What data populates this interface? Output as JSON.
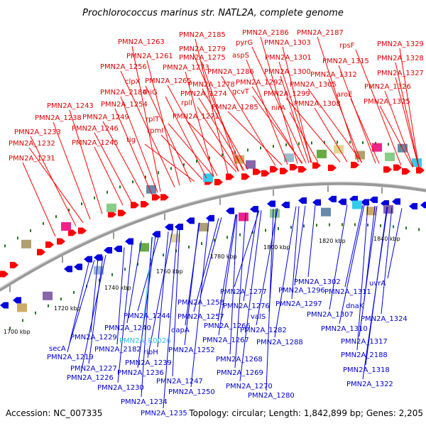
{
  "title": "Prochlorococcus marinus str. NATL2A, complete genome",
  "accession": "Accession: NC_007335",
  "topology": "Topology: circular; Length: 1,842,899 bp; Genes: 2,205",
  "colors": {
    "forward_gene": "#ff0000",
    "reverse_gene": "#0000dd",
    "rna_gene": "#33bbdd",
    "backbone": "#888888",
    "tick_marks": "#227722"
  },
  "scale_labels": [
    {
      "id": "1700",
      "text": "1700 kbp"
    },
    {
      "id": "1720",
      "text": "1720 kbp"
    },
    {
      "id": "1740",
      "text": "1740 kbp"
    },
    {
      "id": "1760",
      "text": "1760 kbp"
    },
    {
      "id": "1780",
      "text": "1780 kbp"
    },
    {
      "id": "1800",
      "text": "1800 kbp"
    },
    {
      "id": "1820",
      "text": "1820 kbp"
    },
    {
      "id": "1840",
      "text": "1840 kbp"
    }
  ],
  "top_genes": [
    "PMN2A_1263",
    "PMN2A_2185",
    "PMN2A_2186",
    "PMN2A_2187",
    "PMN2A_1329",
    "PMN2A_1279",
    "pyrG",
    "PMN2A_1303",
    "PMN2A_1261",
    "PMN2A_1275",
    "aspS",
    "rpsF",
    "PMN2A_1328",
    "PMN2A_1256",
    "PMN2A_1273",
    "PMN2A_1301",
    "PMN2A_1315",
    "PMN2A_1327",
    "clpX",
    "PMN2A_1265",
    "PMN2A_1286",
    "PMN2A_1300",
    "PMN2A_1312",
    "PMN2A_2184",
    "thiG",
    "PMN2A_1278",
    "PMN2A_1292",
    "PMN2A_1305",
    "PMN2A_1326",
    "PMN2A_1243",
    "PMN2A_1254",
    "rplI",
    "PMN2A_1274",
    "gcvT",
    "PMN2A_1299",
    "aroE",
    "PMN2A_1325",
    "PMN2A_1238",
    "PMN2A_1249",
    "rplT",
    "PMN2A_1271",
    "PMN2A_1285",
    "nirA",
    "PMN2A_1308",
    "PMN2A_1246",
    "rpmI",
    "PMN2A_1233",
    "tig",
    "PMN2A_1232",
    "PMN2A_1245",
    "PMN2A_1231"
  ],
  "bottom_genes": [
    "PMN2A_1302",
    "PMN2A_1296",
    "uvrA",
    "PMN2A_1311",
    "PMN2A_1258",
    "PMN2A_1277",
    "PMN2A_1297",
    "dnaK",
    "PMN2A_1276",
    "PMN2A_1307",
    "PMN2A_1244",
    "PMN2A_1257",
    "valS",
    "PMN2A_1324",
    "PMN2A_1240",
    "PMN2A_1266",
    "PMN2A_1282",
    "PMN2A_1310",
    "PMN2A_1229",
    "PMN2A_R0026",
    "dapA",
    "PMN2A_1267",
    "PMN2A_1288",
    "secA",
    "PMN2A_2182",
    "ribH",
    "PMN2A_1252",
    "PMN2A_1317",
    "PMN2A_1219",
    "PMN2A_1239",
    "PMN2A_1268",
    "PMN2A_2188",
    "PMN2A_1227",
    "PMN2A_1236",
    "PMN2A_1318",
    "PMN2A_1226",
    "PMN2A_1247",
    "PMN2A_1269",
    "PMN2A_1230",
    "PMN2A_1250",
    "PMN2A_1270",
    "PMN2A_1322",
    "PMN2A_1280",
    "PMN2A_1234",
    "PMN2A_1235"
  ]
}
